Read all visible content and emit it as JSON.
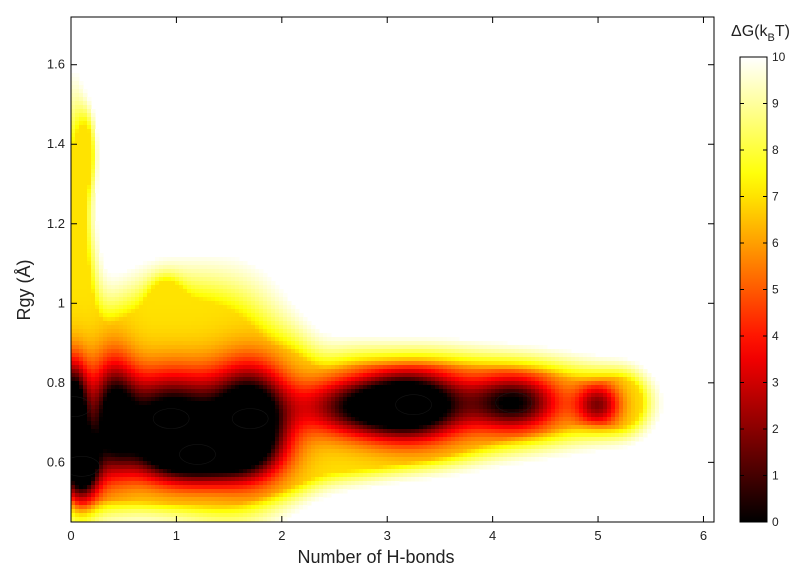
{
  "chart_data": {
    "type": "heatmap",
    "title": "",
    "xlabel": "Number of H-bonds",
    "ylabel": "Rgy (Å)",
    "xlim": [
      0,
      6.1
    ],
    "ylim": [
      0.45,
      1.72
    ],
    "x_ticks": [
      0,
      1,
      2,
      3,
      4,
      5,
      6
    ],
    "y_ticks": [
      0.6,
      0.8,
      1,
      1.2,
      1.4,
      1.6
    ],
    "x_tick_labels": [
      "0",
      "1",
      "2",
      "3",
      "4",
      "5",
      "6"
    ],
    "y_tick_labels": [
      "0.6",
      "0.8",
      "1",
      "1.2",
      "1.4",
      "1.6"
    ],
    "grid": false,
    "colormap": "hot",
    "colorbar": {
      "label": "ΔG(kBT)",
      "label_main": "ΔG(k",
      "label_sub": "B",
      "label_end": "T)",
      "range": [
        0,
        10
      ],
      "ticks": [
        0,
        1,
        2,
        3,
        4,
        5,
        6,
        7,
        8,
        9,
        10
      ],
      "tick_labels": [
        "0",
        "1",
        "2",
        "3",
        "4",
        "5",
        "6",
        "7",
        "8",
        "9",
        "10"
      ]
    },
    "free_energy_minima": [
      {
        "x": 0.1,
        "y": 0.59,
        "deltaG": 0.3
      },
      {
        "x": 0.02,
        "y": 0.74,
        "deltaG": 0.7
      },
      {
        "x": 1.7,
        "y": 0.71,
        "deltaG": 0.3
      },
      {
        "x": 0.95,
        "y": 0.71,
        "deltaG": 1.2
      },
      {
        "x": 1.2,
        "y": 0.62,
        "deltaG": 1.5
      },
      {
        "x": 3.25,
        "y": 0.745,
        "deltaG": 0.7
      },
      {
        "x": 4.2,
        "y": 0.75,
        "deltaG": 2.3
      }
    ],
    "sampled_region_deltaG_max": 10
  }
}
